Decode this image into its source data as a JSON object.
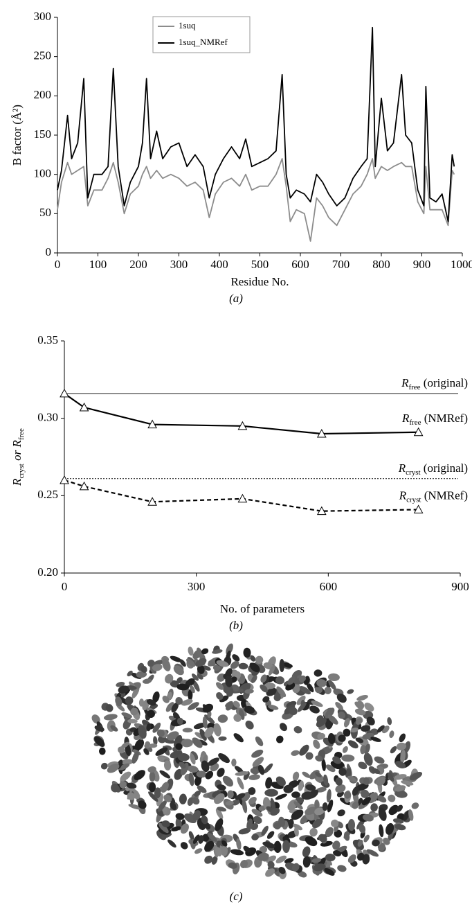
{
  "chart_data": [
    {
      "type": "line",
      "caption": "(a)",
      "xlabel": "Residue No.",
      "ylabel": "B factor (Å²)",
      "x": [
        0,
        10,
        25,
        35,
        50,
        65,
        75,
        90,
        110,
        125,
        138,
        150,
        165,
        180,
        200,
        210,
        220,
        230,
        245,
        260,
        280,
        300,
        320,
        340,
        360,
        375,
        390,
        410,
        430,
        450,
        465,
        480,
        500,
        520,
        540,
        555,
        565,
        575,
        590,
        610,
        625,
        640,
        655,
        670,
        690,
        710,
        730,
        750,
        765,
        778,
        785,
        800,
        815,
        830,
        850,
        860,
        875,
        890,
        905,
        910,
        920,
        935,
        950,
        965,
        975,
        980
      ],
      "series": [
        {
          "name": "1suq",
          "color": "#8c8c8c",
          "values": [
            55,
            90,
            115,
            100,
            105,
            110,
            60,
            80,
            80,
            95,
            115,
            90,
            50,
            75,
            85,
            100,
            110,
            95,
            105,
            95,
            100,
            95,
            85,
            90,
            80,
            45,
            75,
            90,
            95,
            85,
            100,
            80,
            85,
            85,
            100,
            120,
            85,
            40,
            55,
            50,
            15,
            70,
            60,
            45,
            35,
            55,
            75,
            85,
            100,
            120,
            95,
            110,
            105,
            110,
            115,
            110,
            110,
            65,
            50,
            110,
            55,
            55,
            55,
            35,
            105,
            100
          ]
        },
        {
          "name": "1suq_NMRef",
          "color": "#000000",
          "values": [
            80,
            105,
            175,
            120,
            140,
            222,
            70,
            100,
            100,
            110,
            235,
            110,
            60,
            90,
            110,
            140,
            222,
            120,
            155,
            120,
            135,
            140,
            110,
            125,
            110,
            70,
            100,
            120,
            135,
            120,
            145,
            110,
            115,
            120,
            130,
            227,
            100,
            70,
            80,
            75,
            65,
            100,
            90,
            75,
            60,
            70,
            95,
            110,
            120,
            287,
            110,
            197,
            130,
            140,
            227,
            150,
            140,
            80,
            60,
            212,
            70,
            65,
            75,
            40,
            125,
            110
          ]
        }
      ],
      "xlim": [
        0,
        1000
      ],
      "xticks": [
        0,
        100,
        200,
        300,
        400,
        500,
        600,
        700,
        800,
        900,
        1000
      ],
      "ylim": [
        0,
        300
      ],
      "yticks": [
        0,
        50,
        100,
        150,
        200,
        250,
        300
      ]
    },
    {
      "type": "line",
      "caption": "(b)",
      "xlabel": "No. of parameters",
      "ylabel": [
        {
          "main": "R",
          "sub": "cryst"
        },
        {
          "main": " or R",
          "sub": "free"
        }
      ],
      "x": [
        0,
        45,
        200,
        405,
        585,
        805
      ],
      "series": [
        {
          "label": {
            "main": "R",
            "sub": "free",
            "rest": " (NMRef)"
          },
          "color": "#000000",
          "dash": "solid",
          "values": [
            0.316,
            0.307,
            0.296,
            0.295,
            0.29,
            0.291
          ]
        },
        {
          "label": {
            "main": "R",
            "sub": "cryst",
            "rest": " (NMRef)"
          },
          "color": "#000000",
          "dash": "dashed",
          "values": [
            0.26,
            0.256,
            0.246,
            0.248,
            0.24,
            0.241
          ]
        }
      ],
      "reference_lines": [
        {
          "value": 0.316,
          "style": "solid",
          "label": {
            "main": "R",
            "sub": "free",
            "rest": " (original)"
          }
        },
        {
          "value": 0.261,
          "style": "dotted",
          "label": {
            "main": "R",
            "sub": "cryst",
            "rest": " (original)"
          }
        }
      ],
      "xlim": [
        0,
        900
      ],
      "xticks": [
        0,
        300,
        600,
        900
      ],
      "ylim": [
        0.2,
        0.35
      ],
      "yticks": [
        {
          "value": 0.2,
          "label": "0.20"
        },
        {
          "value": 0.25,
          "label": "0.25"
        },
        {
          "value": 0.3,
          "label": "0.30"
        },
        {
          "value": 0.35,
          "label": "0.35"
        }
      ]
    },
    {
      "type": "image",
      "caption": "(c)"
    }
  ]
}
